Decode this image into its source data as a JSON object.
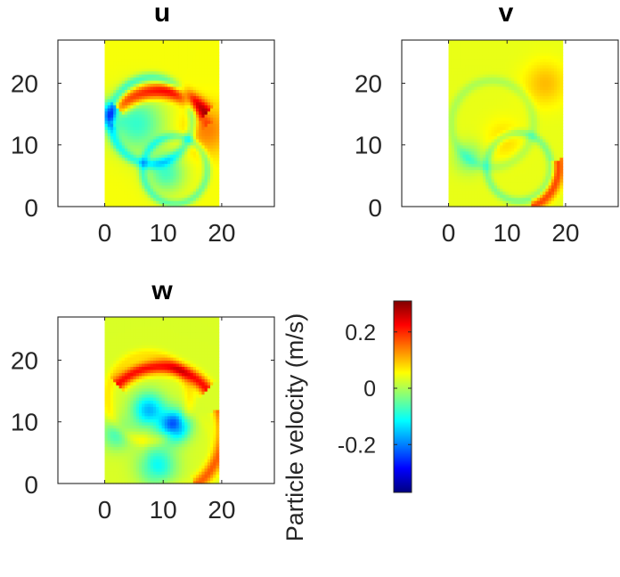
{
  "chart_data": {
    "type": "heatmap",
    "colormap": "jet",
    "panels": [
      {
        "title": "u",
        "xlim": [
          -8,
          29
        ],
        "ylim": [
          0,
          27
        ],
        "data_extent": {
          "x": [
            0,
            19.5
          ],
          "y": [
            0,
            27
          ]
        },
        "xticks": [
          0,
          10,
          20
        ],
        "yticks": [
          0,
          10,
          20
        ],
        "xtick_labels": [
          "0",
          "10",
          "20"
        ],
        "ytick_labels": [
          "0",
          "10",
          "20"
        ],
        "background_value": 0.05,
        "features": [
          {
            "kind": "arc",
            "cx": 9.5,
            "cy": 8.5,
            "r": 10.5,
            "a0": 40,
            "a1": 135,
            "value": 0.22,
            "width": 0.8
          },
          {
            "kind": "arc",
            "cx": 9.5,
            "cy": 8.5,
            "r": 9.5,
            "a0": 30,
            "a1": 150,
            "value": 0.1,
            "width": 0.6
          },
          {
            "kind": "circle",
            "cx": 8,
            "cy": 14,
            "r": 7,
            "value": -0.06,
            "width": 0.6
          },
          {
            "kind": "circle",
            "cx": 12,
            "cy": 6,
            "r": 5.5,
            "value": -0.04,
            "width": 0.5
          },
          {
            "kind": "blob",
            "cx": 5.5,
            "cy": 13.5,
            "r": 6.5,
            "value": -0.08
          },
          {
            "kind": "blob",
            "cx": 17.5,
            "cy": 12.5,
            "r": 5.5,
            "value": 0.14
          },
          {
            "kind": "blob",
            "cx": 10.5,
            "cy": 5.5,
            "r": 4.5,
            "value": -0.07
          },
          {
            "kind": "blob",
            "cx": 0.5,
            "cy": 15,
            "r": 3,
            "value": -0.12
          }
        ]
      },
      {
        "title": "v",
        "xlim": [
          -8,
          29
        ],
        "ylim": [
          0,
          27
        ],
        "data_extent": {
          "x": [
            0,
            19.5
          ],
          "y": [
            0,
            27
          ]
        },
        "xticks": [
          0,
          10,
          20
        ],
        "yticks": [
          0,
          10,
          20
        ],
        "xtick_labels": [
          "0",
          "10",
          "20"
        ],
        "ytick_labels": [
          "0",
          "10",
          "20"
        ],
        "background_value": 0.04,
        "features": [
          {
            "kind": "circle",
            "cx": 7.5,
            "cy": 13.5,
            "r": 7,
            "value": 0.0,
            "width": 0.6
          },
          {
            "kind": "circle",
            "cx": 12,
            "cy": 6.5,
            "r": 5.5,
            "value": -0.03,
            "width": 0.5
          },
          {
            "kind": "blob",
            "cx": 9.5,
            "cy": 11,
            "r": 4.5,
            "value": 0.08
          },
          {
            "kind": "blob",
            "cx": 16.5,
            "cy": 20,
            "r": 5,
            "value": 0.1
          },
          {
            "kind": "blob",
            "cx": 3.5,
            "cy": 8,
            "r": 3.5,
            "value": -0.04
          },
          {
            "kind": "arc",
            "cx": 12,
            "cy": 6.5,
            "r": 6.8,
            "a0": -70,
            "a1": 10,
            "value": 0.18,
            "width": 0.7
          }
        ]
      },
      {
        "title": "w",
        "xlim": [
          -8,
          29
        ],
        "ylim": [
          0,
          27
        ],
        "data_extent": {
          "x": [
            0,
            19.5
          ],
          "y": [
            0,
            27
          ]
        },
        "xticks": [
          0,
          10,
          20
        ],
        "yticks": [
          0,
          10,
          20
        ],
        "xtick_labels": [
          "0",
          "10",
          "20"
        ],
        "ytick_labels": [
          "0",
          "10",
          "20"
        ],
        "background_value": 0.03,
        "features": [
          {
            "kind": "arc",
            "cx": 9.5,
            "cy": 8.5,
            "r": 10.5,
            "a0": 40,
            "a1": 135,
            "value": 0.22,
            "width": 0.8
          },
          {
            "kind": "arc",
            "cx": 9.5,
            "cy": 8.5,
            "r": 10.7,
            "a0": -55,
            "a1": 20,
            "value": 0.16,
            "width": 0.8
          },
          {
            "kind": "circle",
            "cx": 7.5,
            "cy": 14,
            "r": 7,
            "value": 0.07,
            "width": 0.7
          },
          {
            "kind": "circle",
            "cx": 12.5,
            "cy": 6,
            "r": 6,
            "value": 0.04,
            "width": 0.6
          },
          {
            "kind": "blob",
            "cx": 12,
            "cy": 9.5,
            "r": 3.5,
            "value": -0.24
          },
          {
            "kind": "blob",
            "cx": 7.5,
            "cy": 12,
            "r": 4,
            "value": -0.16
          },
          {
            "kind": "blob",
            "cx": 9,
            "cy": 3,
            "r": 4.5,
            "value": -0.11
          },
          {
            "kind": "blob",
            "cx": 2,
            "cy": 8,
            "r": 3.5,
            "value": -0.07
          }
        ]
      }
    ],
    "colorbar": {
      "label": "Particle velocity (m/s)",
      "range": [
        -0.37,
        0.31
      ],
      "ticks": [
        0.2,
        0,
        -0.2
      ],
      "tick_labels": [
        "0.2",
        "0",
        "-0.2"
      ]
    }
  }
}
